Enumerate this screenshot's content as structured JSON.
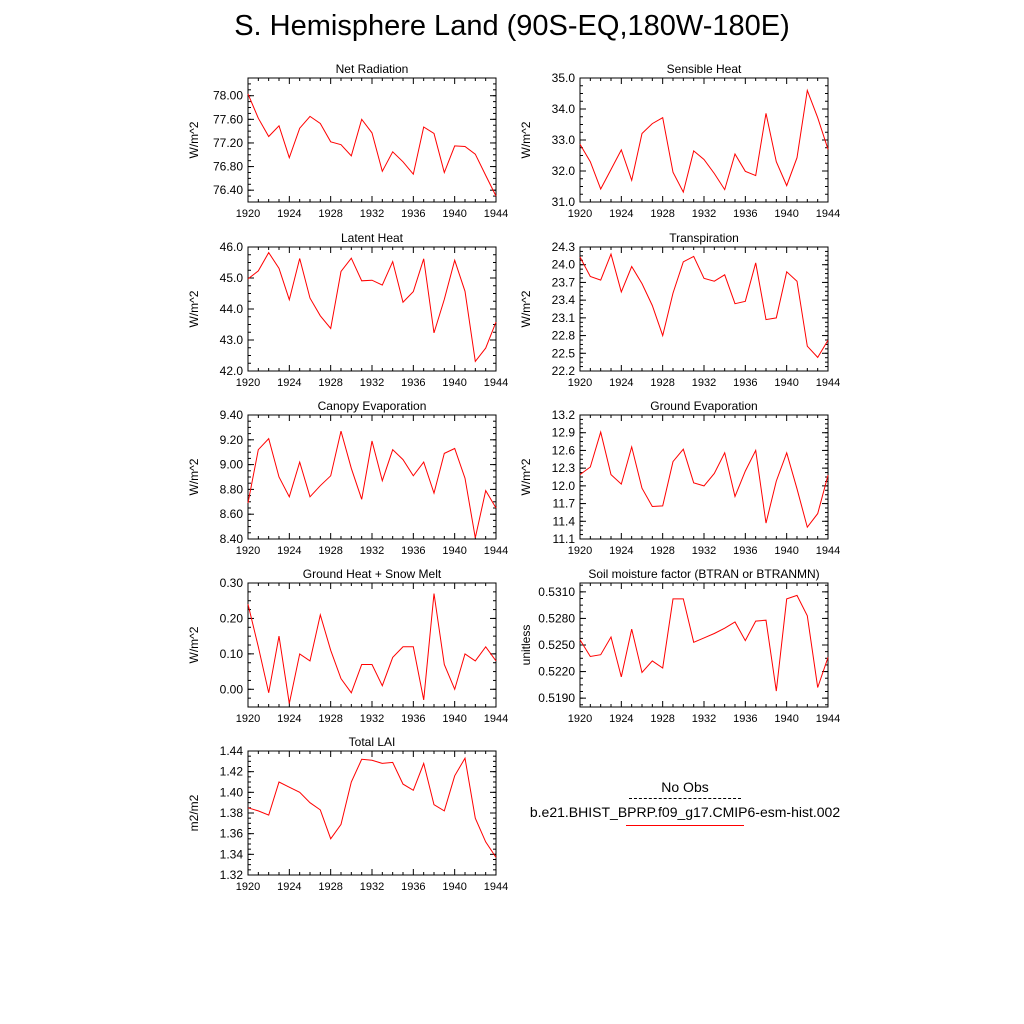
{
  "title": "S. Hemisphere Land (90S-EQ,180W-180E)",
  "legend": {
    "obs_label": "No Obs",
    "model_label": "b.e21.BHIST_BPRP.f09_g17.CMIP6-esm-hist.002",
    "model_color": "#ff0000"
  },
  "chart_data": [
    {
      "type": "line",
      "title": "Net Radiation",
      "ylabel": "W/m^2",
      "ylim": [
        76.2,
        78.3
      ],
      "yticks": [
        76.4,
        76.8,
        77.2,
        77.6,
        78.0
      ],
      "ytick_labels": [
        "76.40",
        "76.80",
        "77.20",
        "77.60",
        "78.00"
      ],
      "xlim": [
        1920,
        1944
      ],
      "xticks": [
        "1920",
        "1924",
        "1928",
        "1932",
        "1936",
        "1940",
        "1944"
      ],
      "x": [
        1920,
        1921,
        1922,
        1923,
        1924,
        1925,
        1926,
        1927,
        1928,
        1929,
        1930,
        1931,
        1932,
        1933,
        1934,
        1935,
        1936,
        1937,
        1938,
        1939,
        1940,
        1941,
        1942,
        1943,
        1944
      ],
      "series": [
        {
          "name": "b.e21.BHIST_BPRP.f09_g17.CMIP6-esm-hist.002",
          "color": "#ff0000",
          "values": [
            78.03,
            77.62,
            77.31,
            77.49,
            76.95,
            77.45,
            77.65,
            77.53,
            77.22,
            77.17,
            76.98,
            77.6,
            77.37,
            76.72,
            77.05,
            76.88,
            76.67,
            77.47,
            77.36,
            76.7,
            77.15,
            77.14,
            77.01,
            76.65,
            76.3
          ]
        }
      ]
    },
    {
      "type": "line",
      "title": "Sensible Heat",
      "ylabel": "W/m^2",
      "ylim": [
        31.0,
        35.0
      ],
      "yticks": [
        31.0,
        32.0,
        33.0,
        34.0,
        35.0
      ],
      "ytick_labels": [
        "31.0",
        "32.0",
        "33.0",
        "34.0",
        "35.0"
      ],
      "xlim": [
        1920,
        1944
      ],
      "xticks": [
        "1920",
        "1924",
        "1928",
        "1932",
        "1936",
        "1940",
        "1944"
      ],
      "x": [
        1920,
        1921,
        1922,
        1923,
        1924,
        1925,
        1926,
        1927,
        1928,
        1929,
        1930,
        1931,
        1932,
        1933,
        1934,
        1935,
        1936,
        1937,
        1938,
        1939,
        1940,
        1941,
        1942,
        1943,
        1944
      ],
      "series": [
        {
          "name": "b.e21.BHIST_BPRP.f09_g17.CMIP6-esm-hist.002",
          "color": "#ff0000",
          "values": [
            32.86,
            32.3,
            31.42,
            32.05,
            32.68,
            31.7,
            33.21,
            33.53,
            33.72,
            31.96,
            31.32,
            32.65,
            32.37,
            31.92,
            31.4,
            32.55,
            31.99,
            31.85,
            33.86,
            32.3,
            31.53,
            32.43,
            34.6,
            33.72,
            32.7
          ]
        }
      ]
    },
    {
      "type": "line",
      "title": "Latent Heat",
      "ylabel": "W/m^2",
      "ylim": [
        42.0,
        46.0
      ],
      "yticks": [
        42.0,
        43.0,
        44.0,
        45.0,
        46.0
      ],
      "ytick_labels": [
        "42.0",
        "43.0",
        "44.0",
        "45.0",
        "46.0"
      ],
      "xlim": [
        1920,
        1944
      ],
      "xticks": [
        "1920",
        "1924",
        "1928",
        "1932",
        "1936",
        "1940",
        "1944"
      ],
      "x": [
        1920,
        1921,
        1922,
        1923,
        1924,
        1925,
        1926,
        1927,
        1928,
        1929,
        1930,
        1931,
        1932,
        1933,
        1934,
        1935,
        1936,
        1937,
        1938,
        1939,
        1940,
        1941,
        1942,
        1943,
        1944
      ],
      "series": [
        {
          "name": "b.e21.BHIST_BPRP.f09_g17.CMIP6-esm-hist.002",
          "color": "#ff0000",
          "values": [
            44.97,
            45.23,
            45.82,
            45.31,
            44.3,
            45.63,
            44.35,
            43.78,
            43.37,
            45.21,
            45.64,
            44.91,
            44.93,
            44.77,
            45.53,
            44.22,
            44.56,
            45.62,
            43.23,
            44.31,
            45.57,
            44.57,
            42.31,
            42.74,
            43.58
          ]
        }
      ]
    },
    {
      "type": "line",
      "title": "Transpiration",
      "ylabel": "W/m^2",
      "ylim": [
        22.2,
        24.3
      ],
      "yticks": [
        22.2,
        22.5,
        22.8,
        23.1,
        23.4,
        23.7,
        24.0,
        24.3
      ],
      "ytick_labels": [
        "22.2",
        "22.5",
        "22.8",
        "23.1",
        "23.4",
        "23.7",
        "24.0",
        "24.3"
      ],
      "xlim": [
        1920,
        1944
      ],
      "xticks": [
        "1920",
        "1924",
        "1928",
        "1932",
        "1936",
        "1940",
        "1944"
      ],
      "x": [
        1920,
        1921,
        1922,
        1923,
        1924,
        1925,
        1926,
        1927,
        1928,
        1929,
        1930,
        1931,
        1932,
        1933,
        1934,
        1935,
        1936,
        1937,
        1938,
        1939,
        1940,
        1941,
        1942,
        1943,
        1944
      ],
      "series": [
        {
          "name": "b.e21.BHIST_BPRP.f09_g17.CMIP6-esm-hist.002",
          "color": "#ff0000",
          "values": [
            24.13,
            23.8,
            23.74,
            24.18,
            23.54,
            23.97,
            23.68,
            23.31,
            22.8,
            23.52,
            24.05,
            24.14,
            23.77,
            23.72,
            23.83,
            23.34,
            23.38,
            24.03,
            23.07,
            23.1,
            23.88,
            23.72,
            22.62,
            22.43,
            22.72
          ]
        }
      ]
    },
    {
      "type": "line",
      "title": "Canopy Evaporation",
      "ylabel": "W/m^2",
      "ylim": [
        8.4,
        9.4
      ],
      "yticks": [
        8.4,
        8.6,
        8.8,
        9.0,
        9.2,
        9.4
      ],
      "ytick_labels": [
        "8.40",
        "8.60",
        "8.80",
        "9.00",
        "9.20",
        "9.40"
      ],
      "xlim": [
        1920,
        1944
      ],
      "xticks": [
        "1920",
        "1924",
        "1928",
        "1932",
        "1936",
        "1940",
        "1944"
      ],
      "x": [
        1920,
        1921,
        1922,
        1923,
        1924,
        1925,
        1926,
        1927,
        1928,
        1929,
        1930,
        1931,
        1932,
        1933,
        1934,
        1935,
        1936,
        1937,
        1938,
        1939,
        1940,
        1941,
        1942,
        1943,
        1944
      ],
      "series": [
        {
          "name": "b.e21.BHIST_BPRP.f09_g17.CMIP6-esm-hist.002",
          "color": "#ff0000",
          "values": [
            8.69,
            9.12,
            9.21,
            8.9,
            8.74,
            9.02,
            8.74,
            8.83,
            8.91,
            9.27,
            8.97,
            8.72,
            9.19,
            8.87,
            9.12,
            9.04,
            8.91,
            9.02,
            8.77,
            9.09,
            9.13,
            8.89,
            8.41,
            8.79,
            8.65
          ]
        }
      ]
    },
    {
      "type": "line",
      "title": "Ground Evaporation",
      "ylabel": "W/m^2",
      "ylim": [
        11.1,
        13.2
      ],
      "yticks": [
        11.1,
        11.4,
        11.7,
        12.0,
        12.3,
        12.6,
        12.9,
        13.2
      ],
      "ytick_labels": [
        "11.1",
        "11.4",
        "11.7",
        "12.0",
        "12.3",
        "12.6",
        "12.9",
        "13.2"
      ],
      "xlim": [
        1920,
        1944
      ],
      "xticks": [
        "1920",
        "1924",
        "1928",
        "1932",
        "1936",
        "1940",
        "1944"
      ],
      "x": [
        1920,
        1921,
        1922,
        1923,
        1924,
        1925,
        1926,
        1927,
        1928,
        1929,
        1930,
        1931,
        1932,
        1933,
        1934,
        1935,
        1936,
        1937,
        1938,
        1939,
        1940,
        1941,
        1942,
        1943,
        1944
      ],
      "series": [
        {
          "name": "b.e21.BHIST_BPRP.f09_g17.CMIP6-esm-hist.002",
          "color": "#ff0000",
          "values": [
            12.19,
            12.32,
            12.91,
            12.19,
            12.03,
            12.66,
            11.96,
            11.65,
            11.66,
            12.41,
            12.62,
            12.05,
            12.0,
            12.21,
            12.56,
            11.82,
            12.25,
            12.6,
            11.37,
            12.08,
            12.56,
            11.95,
            11.3,
            11.53,
            12.18
          ]
        }
      ]
    },
    {
      "type": "line",
      "title": "Ground Heat + Snow Melt",
      "ylabel": "W/m^2",
      "ylim": [
        -0.05,
        0.3
      ],
      "yticks": [
        0.0,
        0.1,
        0.2,
        0.3
      ],
      "ytick_labels": [
        "0.00",
        "0.10",
        "0.20",
        "0.30"
      ],
      "xlim": [
        1920,
        1944
      ],
      "xticks": [
        "1920",
        "1924",
        "1928",
        "1932",
        "1936",
        "1940",
        "1944"
      ],
      "x": [
        1920,
        1921,
        1922,
        1923,
        1924,
        1925,
        1926,
        1927,
        1928,
        1929,
        1930,
        1931,
        1932,
        1933,
        1934,
        1935,
        1936,
        1937,
        1938,
        1939,
        1940,
        1941,
        1942,
        1943,
        1944
      ],
      "series": [
        {
          "name": "b.e21.BHIST_BPRP.f09_g17.CMIP6-esm-hist.002",
          "color": "#ff0000",
          "values": [
            0.24,
            0.12,
            -0.01,
            0.15,
            -0.04,
            0.1,
            0.08,
            0.21,
            0.11,
            0.03,
            -0.01,
            0.07,
            0.07,
            0.01,
            0.09,
            0.12,
            0.12,
            -0.03,
            0.27,
            0.07,
            0.0,
            0.1,
            0.08,
            0.12,
            0.08
          ]
        }
      ]
    },
    {
      "type": "line",
      "title": "Soil moisture factor (BTRAN or BTRANMN)",
      "ylabel": "unitless",
      "ylim": [
        0.518,
        0.532
      ],
      "yticks": [
        0.519,
        0.522,
        0.525,
        0.528,
        0.531
      ],
      "ytick_labels": [
        "0.5190",
        "0.5220",
        "0.5250",
        "0.5280",
        "0.5310"
      ],
      "xlim": [
        1920,
        1944
      ],
      "xticks": [
        "1920",
        "1924",
        "1928",
        "1932",
        "1936",
        "1940",
        "1944"
      ],
      "x": [
        1920,
        1921,
        1922,
        1923,
        1924,
        1925,
        1926,
        1927,
        1928,
        1929,
        1930,
        1931,
        1932,
        1933,
        1934,
        1935,
        1936,
        1937,
        1938,
        1939,
        1940,
        1941,
        1942,
        1943,
        1944
      ],
      "series": [
        {
          "name": "b.e21.BHIST_BPRP.f09_g17.CMIP6-esm-hist.002",
          "color": "#ff0000",
          "values": [
            0.5256,
            0.5237,
            0.5239,
            0.5259,
            0.5214,
            0.5268,
            0.5219,
            0.5232,
            0.5224,
            0.5302,
            0.5302,
            0.5253,
            0.5258,
            0.5263,
            0.5269,
            0.5276,
            0.5255,
            0.5277,
            0.5278,
            0.5198,
            0.5302,
            0.5306,
            0.5283,
            0.5202,
            0.5236
          ]
        }
      ]
    },
    {
      "type": "line",
      "title": "Total LAI",
      "ylabel": "m2/m2",
      "ylim": [
        1.32,
        1.44
      ],
      "yticks": [
        1.32,
        1.34,
        1.36,
        1.38,
        1.4,
        1.42,
        1.44
      ],
      "ytick_labels": [
        "1.32",
        "1.34",
        "1.36",
        "1.38",
        "1.40",
        "1.42",
        "1.44"
      ],
      "xlim": [
        1920,
        1944
      ],
      "xticks": [
        "1920",
        "1924",
        "1928",
        "1932",
        "1936",
        "1940",
        "1944"
      ],
      "x": [
        1920,
        1921,
        1922,
        1923,
        1924,
        1925,
        1926,
        1927,
        1928,
        1929,
        1930,
        1931,
        1932,
        1933,
        1934,
        1935,
        1936,
        1937,
        1938,
        1939,
        1940,
        1941,
        1942,
        1943,
        1944
      ],
      "series": [
        {
          "name": "b.e21.BHIST_BPRP.f09_g17.CMIP6-esm-hist.002",
          "color": "#ff0000",
          "values": [
            1.385,
            1.382,
            1.378,
            1.41,
            1.405,
            1.4,
            1.39,
            1.383,
            1.355,
            1.369,
            1.41,
            1.432,
            1.431,
            1.428,
            1.429,
            1.408,
            1.402,
            1.428,
            1.388,
            1.382,
            1.416,
            1.433,
            1.375,
            1.352,
            1.337
          ]
        }
      ]
    }
  ]
}
